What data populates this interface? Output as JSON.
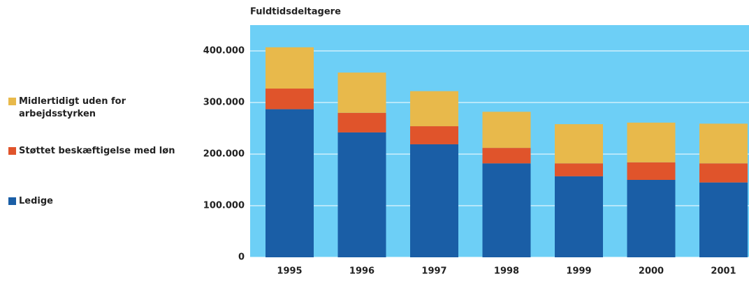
{
  "chart_data": {
    "type": "stacked_bar",
    "y_axis_label": "Fuldtidsdeltagere",
    "categories": [
      "1995",
      "1996",
      "1997",
      "1998",
      "1999",
      "2000",
      "2001"
    ],
    "series": [
      {
        "name": "Ledige",
        "color": "#1a5ea6",
        "values": [
          287000,
          242000,
          219000,
          182000,
          157000,
          150000,
          145000
        ]
      },
      {
        "name": "Støttet beskæftigelse med løn",
        "color": "#e0542b",
        "values": [
          40000,
          38000,
          35000,
          30000,
          25000,
          34000,
          37000
        ]
      },
      {
        "name": "Midlertidigt uden for arbejdsstyrken",
        "color": "#e8b94b",
        "values": [
          80000,
          78000,
          68000,
          70000,
          76000,
          77000,
          77000
        ]
      }
    ],
    "ylim": [
      0,
      450000
    ],
    "yticks": [
      0,
      {
        "value": 100000,
        "label": "100.000"
      },
      {
        "value": 200000,
        "label": "200.000"
      },
      {
        "value": 300000,
        "label": "300.000"
      },
      {
        "value": 400000,
        "label": "400.000"
      }
    ],
    "grid": true,
    "legend": "left",
    "background": "#6dcff6"
  }
}
